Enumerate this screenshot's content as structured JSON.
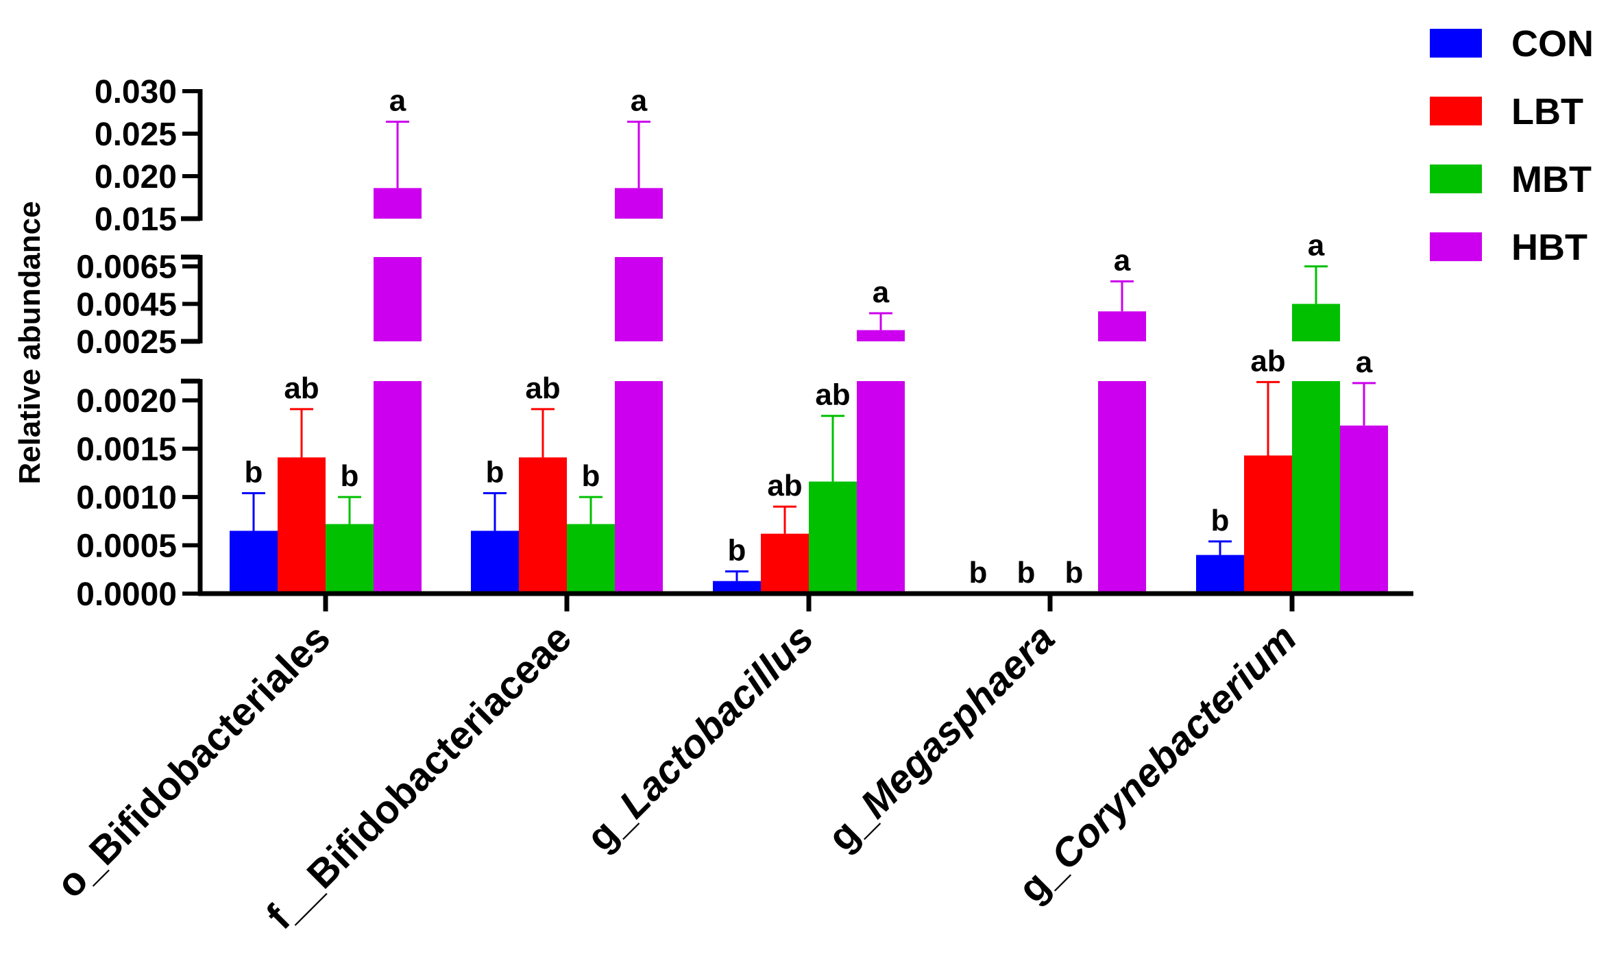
{
  "chart_data": {
    "type": "bar",
    "ylabel": "Relative abundance",
    "xlabel": "",
    "categories": [
      {
        "prefix": "o_",
        "name": "Bifidobacteriales",
        "italic": false
      },
      {
        "prefix": "f__",
        "name": "Bifidobacteriaceae",
        "italic": false
      },
      {
        "prefix": "g_",
        "name": "Lactobacillus",
        "italic": true
      },
      {
        "prefix": "g_",
        "name": "Megasphaera",
        "italic": true
      },
      {
        "prefix": "g_",
        "name": "Corynebacterium",
        "italic": true
      }
    ],
    "series": [
      {
        "name": "CON",
        "color": "#0000ff",
        "values": [
          0.00065,
          0.00065,
          0.00013,
          0.0,
          0.0004
        ],
        "errors": [
          0.00039,
          0.00039,
          0.0001,
          0.0,
          0.00014
        ],
        "letters": [
          "b",
          "b",
          "b",
          "b",
          "b"
        ]
      },
      {
        "name": "LBT",
        "color": "#ff0000",
        "values": [
          0.00141,
          0.00141,
          0.00062,
          0.0,
          0.00143
        ],
        "errors": [
          0.0005,
          0.0005,
          0.00028,
          0.0,
          0.00076
        ],
        "letters": [
          "ab",
          "ab",
          "ab",
          "b",
          "ab"
        ]
      },
      {
        "name": "MBT",
        "color": "#00c000",
        "values": [
          0.00072,
          0.00072,
          0.00116,
          0.0,
          0.0045
        ],
        "errors": [
          0.00028,
          0.00028,
          0.00068,
          0.0,
          0.002
        ],
        "letters": [
          "b",
          "b",
          "ab",
          "b",
          "a"
        ]
      },
      {
        "name": "HBT",
        "color": "#cc00ee",
        "values": [
          0.0186,
          0.0186,
          0.0031,
          0.0041,
          0.00174
        ],
        "errors": [
          0.0078,
          0.0078,
          0.0009,
          0.0016,
          0.00044
        ],
        "letters": [
          "a",
          "a",
          "a",
          "a",
          "a"
        ]
      }
    ],
    "y_segments": [
      {
        "range": [
          0.0,
          0.0022
        ],
        "ticks": [
          "0.0000",
          "0.0005",
          "0.0010",
          "0.0015",
          "0.0020"
        ]
      },
      {
        "range": [
          0.0025,
          0.007
        ],
        "ticks": [
          "0.0025",
          "0.0045",
          "0.0065"
        ]
      },
      {
        "range": [
          0.015,
          0.03
        ],
        "ticks": [
          "0.015",
          "0.020",
          "0.025",
          "0.030"
        ]
      }
    ],
    "legend": {
      "position": "top-right",
      "entries": [
        "CON",
        "LBT",
        "MBT",
        "HBT"
      ]
    }
  }
}
